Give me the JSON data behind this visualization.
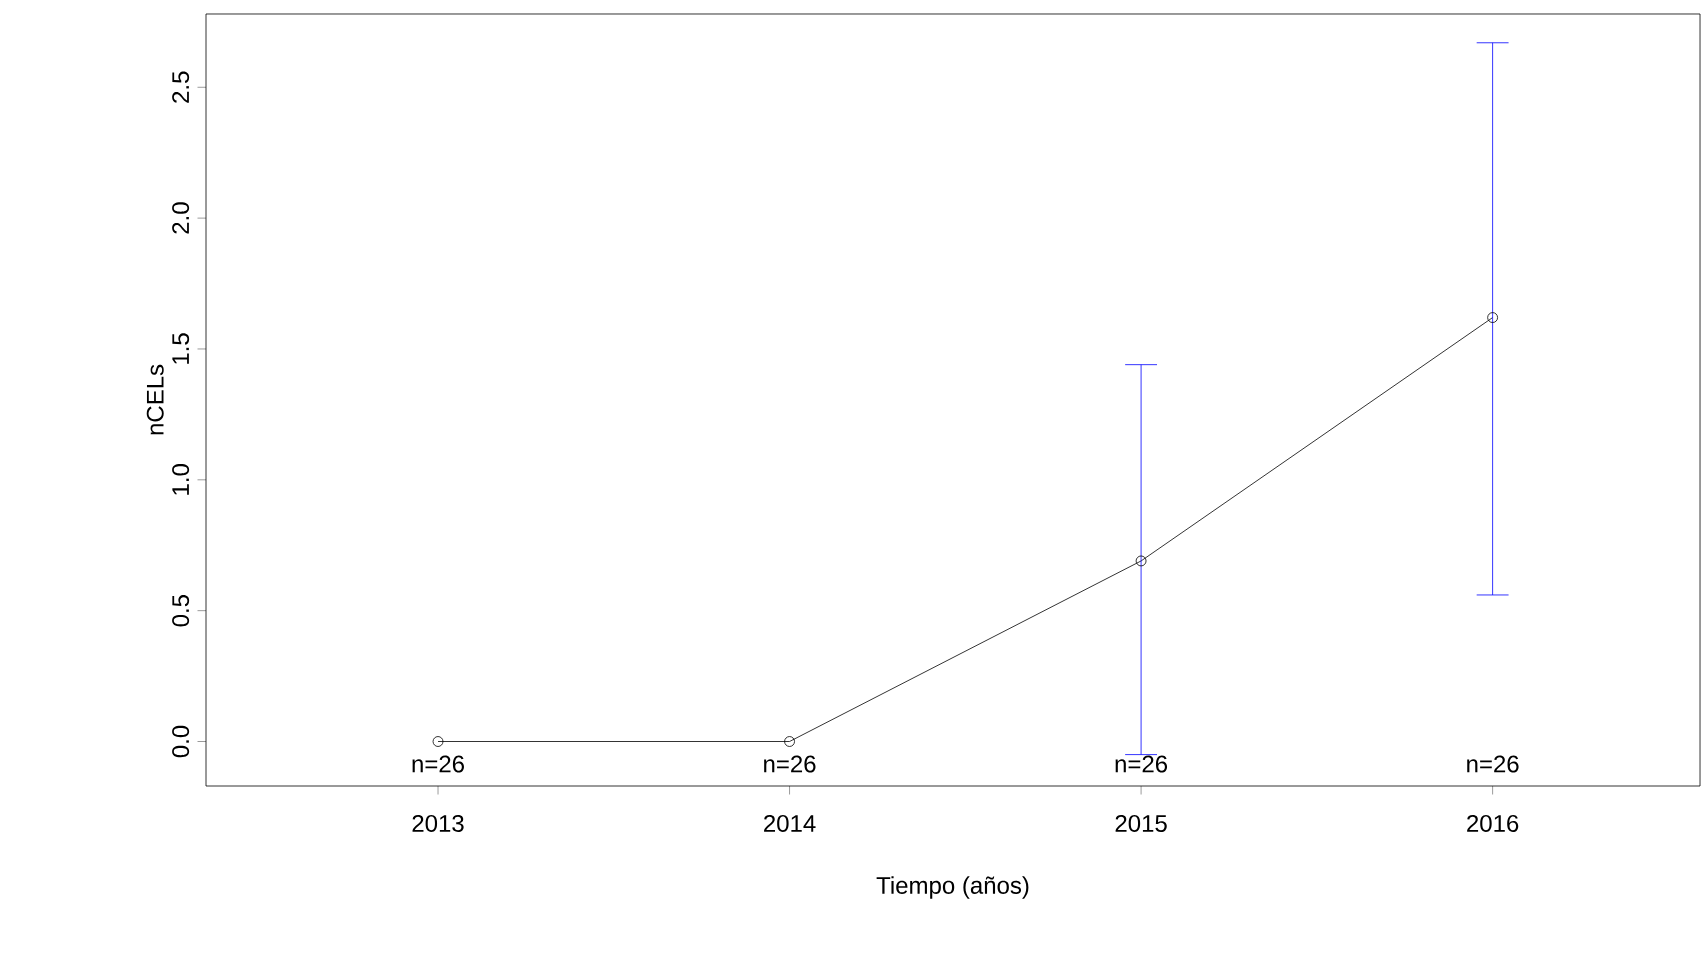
{
  "chart_data": {
    "type": "line",
    "xlabel": "Tiempo (años)",
    "ylabel": "nCELs",
    "x": [
      2013,
      2014,
      2015,
      2016
    ],
    "values": [
      0,
      0,
      0.69,
      1.62
    ],
    "errors": [
      null,
      null,
      [
        -0.05,
        1.44
      ],
      [
        0.56,
        2.67
      ]
    ],
    "color": "#000000",
    "marker": "circle",
    "line_style": "solid",
    "xlim": [
      2012.34,
      2016.59
    ],
    "ylim": [
      -0.17,
      2.78
    ],
    "xticks": [
      2013,
      2014,
      2015,
      2016
    ],
    "yticks": [
      {
        "value": 0,
        "label": "0.0"
      },
      {
        "value": 0.5,
        "label": "0.5"
      },
      {
        "value": 1,
        "label": "1.0"
      },
      {
        "value": 1.5,
        "label": "1.5"
      },
      {
        "value": 2,
        "label": "2.0"
      },
      {
        "value": 2.5,
        "label": "2.5"
      }
    ],
    "annotations": [
      "n=26",
      "n=26",
      "n=26",
      "n=26"
    ],
    "grid": false
  }
}
